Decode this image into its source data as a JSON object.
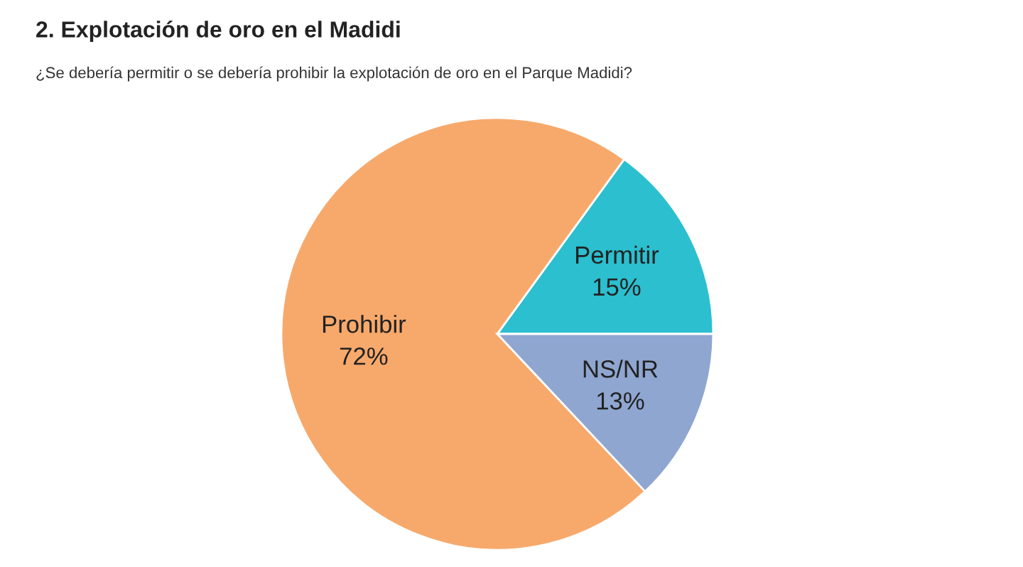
{
  "chart_data": {
    "type": "pie",
    "title": "2. Explotación de oro en el Madidi",
    "subtitle": "¿Se debería permitir o se debería prohibir la explotación de oro en el Parque Madidi?",
    "categories": [
      "Permitir",
      "Prohibir",
      "NS/NR"
    ],
    "values": [
      15,
      72,
      13
    ],
    "value_labels": [
      "15%",
      "72%",
      "13%"
    ],
    "colors": [
      "#2bbfcf",
      "#f7a96b",
      "#8fa6d1"
    ]
  }
}
